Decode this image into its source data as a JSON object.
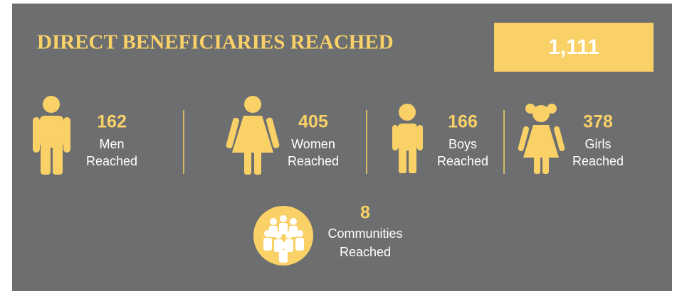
{
  "header": {
    "title": "DIRECT BENEFICIARIES REACHED",
    "total": "1,111"
  },
  "stats": [
    {
      "value": "162",
      "label_lines": [
        "Men",
        "Reached"
      ]
    },
    {
      "value": "405",
      "label_lines": [
        "Women",
        "Reached"
      ]
    },
    {
      "value": "166",
      "label_lines": [
        "Boys",
        "Reached"
      ]
    },
    {
      "value": "378",
      "label_lines": [
        "Girls",
        "Reached"
      ]
    },
    {
      "value": "8",
      "label_lines": [
        "Communities",
        "Reached"
      ]
    }
  ]
}
